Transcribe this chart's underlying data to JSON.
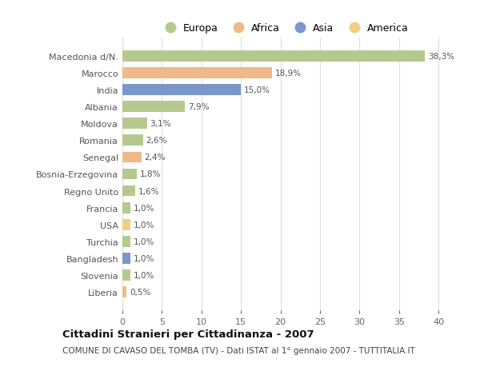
{
  "countries": [
    "Macedonia d/N.",
    "Marocco",
    "India",
    "Albania",
    "Moldova",
    "Romania",
    "Senegal",
    "Bosnia-Erzegovina",
    "Regno Unito",
    "Francia",
    "USA",
    "Turchia",
    "Bangladesh",
    "Slovenia",
    "Liberia"
  ],
  "values": [
    38.3,
    18.9,
    15.0,
    7.9,
    3.1,
    2.6,
    2.4,
    1.8,
    1.6,
    1.0,
    1.0,
    1.0,
    1.0,
    1.0,
    0.5
  ],
  "labels": [
    "38,3%",
    "18,9%",
    "15,0%",
    "7,9%",
    "3,1%",
    "2,6%",
    "2,4%",
    "1,8%",
    "1,6%",
    "1,0%",
    "1,0%",
    "1,0%",
    "1,0%",
    "1,0%",
    "0,5%"
  ],
  "colors": [
    "#b5c98e",
    "#f0b987",
    "#7b96c9",
    "#b5c98e",
    "#b5c98e",
    "#b5c98e",
    "#f0b987",
    "#b5c98e",
    "#b5c98e",
    "#b5c98e",
    "#f0d080",
    "#b5c98e",
    "#7b96c9",
    "#b5c98e",
    "#f0b987"
  ],
  "legend_labels": [
    "Europa",
    "Africa",
    "Asia",
    "America"
  ],
  "legend_colors": [
    "#b5c98e",
    "#f0b987",
    "#7b96c9",
    "#f0d080"
  ],
  "title": "Cittadini Stranieri per Cittadinanza - 2007",
  "subtitle": "COMUNE DI CAVASO DEL TOMBA (TV) - Dati ISTAT al 1° gennaio 2007 - TUTTITALIA.IT",
  "xlim": [
    0,
    41
  ],
  "xticks": [
    0,
    5,
    10,
    15,
    20,
    25,
    30,
    35,
    40
  ],
  "background_color": "#ffffff",
  "grid_color": "#dddddd"
}
